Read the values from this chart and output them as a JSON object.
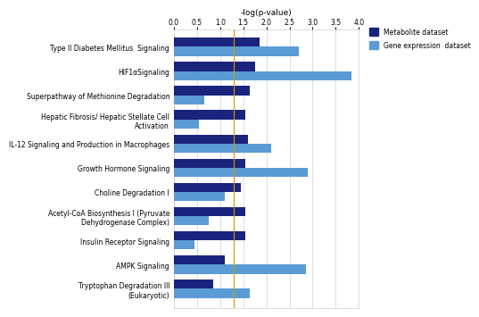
{
  "categories": [
    "Type II Diabetes Mellitus  Signaling",
    "HIF1αSignaling",
    "Superpathway of Methionine Degradation",
    "Hepatic Fibrosis/ Hepatic Stellate Cell\nActivation",
    "IL-12 Signaling and Production in Macrophages",
    "Growth Hormone Signaling",
    "Choline Degradation I",
    "Acetyl-CoA Biosynthesis I (Pyruvate\nDehydrogenase Complex)",
    "Insulin Receptor Signaling",
    "AMPK Signaling",
    "Tryptophan Degradation III\n(Eukaryotic)"
  ],
  "metabolite_values": [
    1.85,
    1.75,
    1.65,
    1.55,
    1.6,
    1.55,
    1.45,
    1.55,
    1.55,
    1.1,
    0.85
  ],
  "gene_values": [
    2.7,
    3.85,
    0.65,
    0.55,
    2.1,
    2.9,
    1.1,
    0.75,
    0.45,
    2.85,
    1.65
  ],
  "metabolite_color": "#1a237e",
  "gene_color": "#5b9bd5",
  "xlabel": "-log(p-value)",
  "xlim": [
    0,
    4.0
  ],
  "xticks": [
    0.0,
    0.5,
    1.0,
    1.5,
    2.0,
    2.5,
    3.0,
    3.5,
    4.0
  ],
  "threshold_line": 1.3,
  "threshold_color": "#c8a000",
  "legend_metabolite": "Metabolite dataset",
  "legend_gene": "Gene expression  dataset",
  "background_color": "#ffffff",
  "grid_color": "#d0d0d0",
  "bar_height": 0.38,
  "xlabel_fontsize": 6.5,
  "tick_fontsize": 5.5,
  "label_fontsize": 5.5
}
